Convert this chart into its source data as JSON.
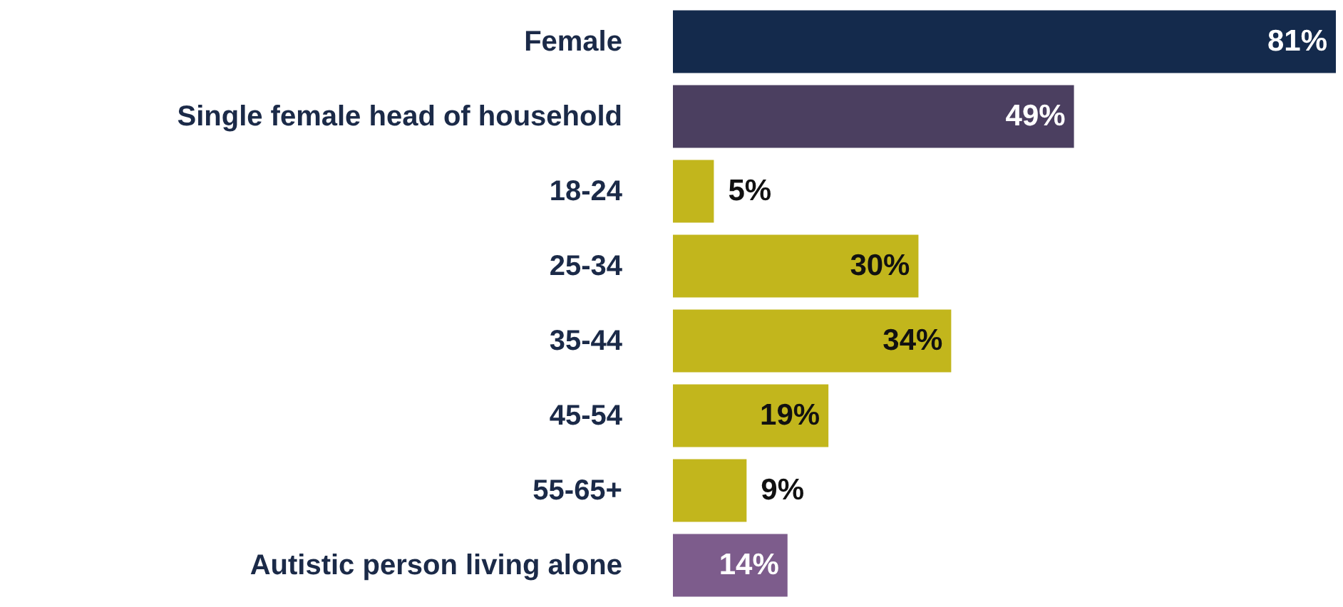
{
  "chart_data": {
    "type": "bar",
    "orientation": "horizontal",
    "categories": [
      "Female",
      "Single female head of household",
      "18-24",
      "25-34",
      "35-44",
      "45-54",
      "55-65+",
      "Autistic person living alone"
    ],
    "values": [
      81,
      49,
      5,
      30,
      34,
      19,
      9,
      14
    ],
    "colors": [
      "#142a4c",
      "#4b3f60",
      "#c2b61c",
      "#c2b61c",
      "#c2b61c",
      "#c2b61c",
      "#c2b61c",
      "#7d5c8c"
    ],
    "value_labels": [
      "81%",
      "49%",
      "5%",
      "30%",
      "34%",
      "19%",
      "9%",
      "14%"
    ]
  }
}
